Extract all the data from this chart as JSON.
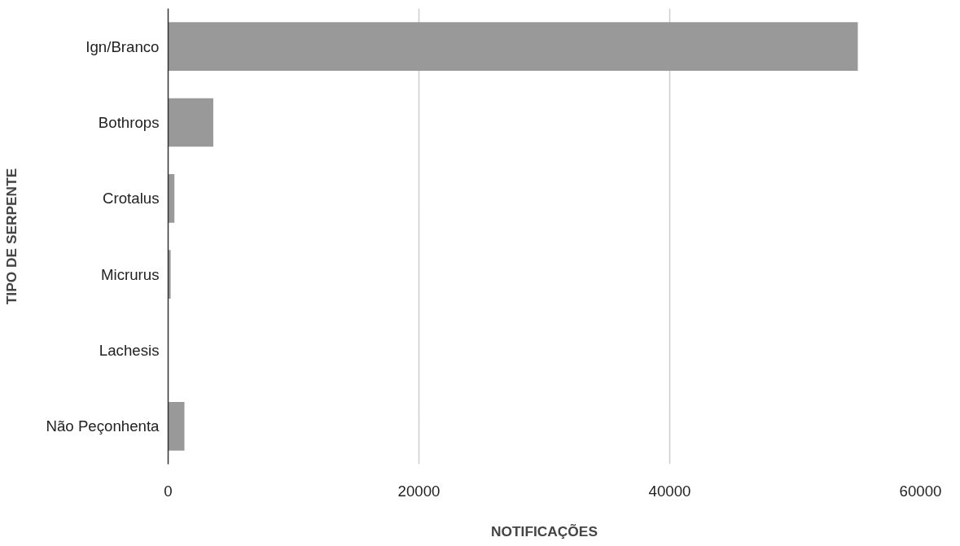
{
  "chart_data": {
    "type": "bar",
    "orientation": "horizontal",
    "categories": [
      "Ign/Branco",
      "Bothrops",
      "Crotalus",
      "Micrurus",
      "Lachesis",
      "Não Peçonhenta"
    ],
    "values": [
      55000,
      3600,
      500,
      200,
      20,
      1300
    ],
    "color": "#999999",
    "xlim": [
      0,
      60000
    ],
    "xticks": [
      0,
      20000,
      40000,
      60000
    ],
    "xlabel": "NOTIFICAÇÕES",
    "ylabel": "TIPO DE SERPENTE",
    "grid": "x"
  }
}
